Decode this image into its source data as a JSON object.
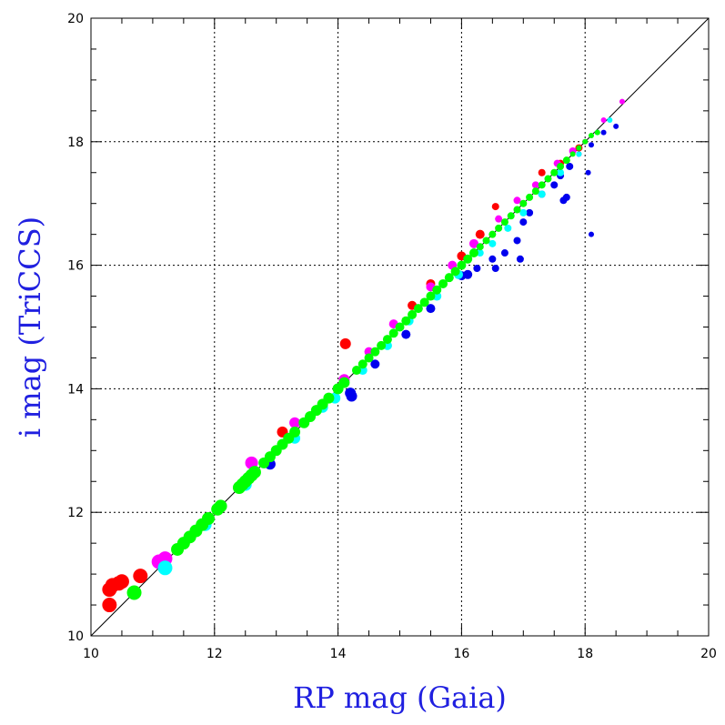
{
  "chart_data": {
    "type": "scatter",
    "title": "",
    "xlabel": "RP mag (Gaia)",
    "ylabel": "i mag (TriCCS)",
    "xlim": [
      10,
      20
    ],
    "ylim": [
      10,
      20
    ],
    "x_ticks": [
      "10",
      "12",
      "14",
      "16",
      "18",
      "20"
    ],
    "y_ticks": [
      "10",
      "12",
      "14",
      "16",
      "18",
      "20"
    ],
    "grid": true,
    "reference_line": {
      "from": [
        10,
        10
      ],
      "to": [
        20,
        20
      ]
    },
    "colors": {
      "red": "#ff0000",
      "magenta": "#ff00ff",
      "blue": "#0000ee",
      "cyan": "#00ffff",
      "green": "#00ff00",
      "grid": "#000000",
      "axis_title": "#2020e0"
    },
    "series": [
      {
        "color": "red",
        "points": [
          [
            10.3,
            10.5,
            8
          ],
          [
            10.3,
            10.75,
            8
          ],
          [
            10.35,
            10.82,
            8
          ],
          [
            10.45,
            10.85,
            8
          ],
          [
            10.5,
            10.88,
            8
          ],
          [
            10.8,
            10.97,
            8
          ],
          [
            13.1,
            13.3,
            6
          ],
          [
            14.12,
            14.73,
            6
          ],
          [
            15.2,
            15.35,
            5
          ],
          [
            15.5,
            15.7,
            5
          ],
          [
            16.0,
            16.15,
            5
          ],
          [
            16.3,
            16.5,
            5
          ],
          [
            16.55,
            16.95,
            4
          ],
          [
            17.3,
            17.5,
            4
          ],
          [
            17.6,
            17.65,
            4
          ],
          [
            17.9,
            17.9,
            4
          ]
        ]
      },
      {
        "color": "magenta",
        "points": [
          [
            11.1,
            11.2,
            8
          ],
          [
            11.2,
            11.25,
            8
          ],
          [
            12.6,
            12.8,
            7
          ],
          [
            13.3,
            13.45,
            6
          ],
          [
            14.1,
            14.15,
            6
          ],
          [
            14.5,
            14.6,
            5
          ],
          [
            14.9,
            15.05,
            5
          ],
          [
            15.5,
            15.65,
            5
          ],
          [
            15.85,
            16.0,
            5
          ],
          [
            16.2,
            16.35,
            5
          ],
          [
            16.6,
            16.75,
            4
          ],
          [
            16.9,
            17.05,
            4
          ],
          [
            17.2,
            17.3,
            4
          ],
          [
            17.55,
            17.65,
            4
          ],
          [
            17.8,
            17.85,
            4
          ],
          [
            18.0,
            18.0,
            3
          ],
          [
            18.3,
            18.35,
            3
          ],
          [
            18.6,
            18.65,
            3
          ]
        ]
      },
      {
        "color": "blue",
        "points": [
          [
            12.9,
            12.78,
            6
          ],
          [
            14.2,
            13.93,
            6
          ],
          [
            14.22,
            13.88,
            6
          ],
          [
            14.6,
            14.4,
            5
          ],
          [
            15.1,
            14.88,
            5
          ],
          [
            15.5,
            15.3,
            5
          ],
          [
            16.0,
            15.83,
            5
          ],
          [
            16.1,
            15.85,
            5
          ],
          [
            16.25,
            15.95,
            4
          ],
          [
            16.5,
            16.1,
            4
          ],
          [
            16.55,
            15.95,
            4
          ],
          [
            16.7,
            16.2,
            4
          ],
          [
            16.9,
            16.4,
            4
          ],
          [
            16.95,
            16.1,
            4
          ],
          [
            17.0,
            16.7,
            4
          ],
          [
            17.1,
            16.85,
            4
          ],
          [
            17.3,
            17.15,
            4
          ],
          [
            17.5,
            17.3,
            4
          ],
          [
            17.6,
            17.45,
            4
          ],
          [
            17.65,
            17.05,
            4
          ],
          [
            17.7,
            17.1,
            4
          ],
          [
            17.75,
            17.6,
            4
          ],
          [
            17.9,
            17.8,
            3
          ],
          [
            18.05,
            17.5,
            3
          ],
          [
            18.1,
            16.5,
            3
          ],
          [
            18.1,
            17.95,
            3
          ],
          [
            18.3,
            18.15,
            3
          ],
          [
            18.5,
            18.25,
            3
          ]
        ]
      },
      {
        "color": "cyan",
        "points": [
          [
            11.2,
            11.1,
            8
          ],
          [
            11.85,
            11.8,
            7
          ],
          [
            12.5,
            12.45,
            7
          ],
          [
            13.3,
            13.2,
            6
          ],
          [
            13.75,
            13.7,
            6
          ],
          [
            13.95,
            13.85,
            6
          ],
          [
            14.4,
            14.3,
            5
          ],
          [
            14.8,
            14.7,
            5
          ],
          [
            15.15,
            15.1,
            5
          ],
          [
            15.6,
            15.5,
            5
          ],
          [
            15.95,
            15.85,
            5
          ],
          [
            16.3,
            16.2,
            4
          ],
          [
            16.5,
            16.35,
            4
          ],
          [
            16.75,
            16.6,
            4
          ],
          [
            17.0,
            16.85,
            4
          ],
          [
            17.3,
            17.15,
            4
          ],
          [
            17.6,
            17.5,
            4
          ],
          [
            17.9,
            17.8,
            3
          ],
          [
            18.2,
            18.15,
            3
          ],
          [
            18.4,
            18.35,
            3
          ]
        ]
      },
      {
        "color": "green",
        "points": [
          [
            10.7,
            10.7,
            8
          ],
          [
            11.4,
            11.4,
            7
          ],
          [
            11.5,
            11.5,
            7
          ],
          [
            11.6,
            11.6,
            7
          ],
          [
            11.7,
            11.7,
            7
          ],
          [
            11.8,
            11.8,
            7
          ],
          [
            11.9,
            11.9,
            7
          ],
          [
            12.05,
            12.05,
            7
          ],
          [
            12.1,
            12.1,
            7
          ],
          [
            12.4,
            12.4,
            7
          ],
          [
            12.45,
            12.45,
            7
          ],
          [
            12.5,
            12.5,
            7
          ],
          [
            12.55,
            12.55,
            7
          ],
          [
            12.6,
            12.6,
            7
          ],
          [
            12.65,
            12.65,
            7
          ],
          [
            12.8,
            12.8,
            6
          ],
          [
            12.9,
            12.9,
            6
          ],
          [
            13.0,
            13.0,
            6
          ],
          [
            13.1,
            13.1,
            6
          ],
          [
            13.2,
            13.2,
            6
          ],
          [
            13.3,
            13.3,
            6
          ],
          [
            13.45,
            13.45,
            6
          ],
          [
            13.55,
            13.55,
            6
          ],
          [
            13.65,
            13.65,
            6
          ],
          [
            13.75,
            13.75,
            6
          ],
          [
            13.85,
            13.85,
            6
          ],
          [
            14.0,
            14.0,
            6
          ],
          [
            14.1,
            14.1,
            6
          ],
          [
            14.3,
            14.3,
            5
          ],
          [
            14.4,
            14.4,
            5
          ],
          [
            14.5,
            14.5,
            5
          ],
          [
            14.6,
            14.6,
            5
          ],
          [
            14.7,
            14.7,
            5
          ],
          [
            14.8,
            14.8,
            5
          ],
          [
            14.9,
            14.9,
            5
          ],
          [
            15.0,
            15.0,
            5
          ],
          [
            15.1,
            15.1,
            5
          ],
          [
            15.2,
            15.2,
            5
          ],
          [
            15.3,
            15.3,
            5
          ],
          [
            15.4,
            15.4,
            5
          ],
          [
            15.5,
            15.5,
            5
          ],
          [
            15.6,
            15.6,
            5
          ],
          [
            15.7,
            15.7,
            5
          ],
          [
            15.8,
            15.8,
            5
          ],
          [
            15.9,
            15.9,
            5
          ],
          [
            16.0,
            16.0,
            5
          ],
          [
            16.1,
            16.1,
            5
          ],
          [
            16.2,
            16.2,
            5
          ],
          [
            16.3,
            16.3,
            4
          ],
          [
            16.4,
            16.4,
            4
          ],
          [
            16.5,
            16.5,
            4
          ],
          [
            16.6,
            16.6,
            4
          ],
          [
            16.7,
            16.7,
            4
          ],
          [
            16.8,
            16.8,
            4
          ],
          [
            16.9,
            16.9,
            4
          ],
          [
            17.0,
            17.0,
            4
          ],
          [
            17.1,
            17.1,
            4
          ],
          [
            17.2,
            17.2,
            4
          ],
          [
            17.3,
            17.3,
            4
          ],
          [
            17.4,
            17.4,
            4
          ],
          [
            17.5,
            17.5,
            4
          ],
          [
            17.6,
            17.6,
            4
          ],
          [
            17.7,
            17.7,
            4
          ],
          [
            17.8,
            17.8,
            3
          ],
          [
            17.9,
            17.9,
            3
          ],
          [
            18.0,
            18.0,
            3
          ],
          [
            18.1,
            18.1,
            3
          ],
          [
            18.2,
            18.15,
            3
          ]
        ]
      }
    ]
  }
}
